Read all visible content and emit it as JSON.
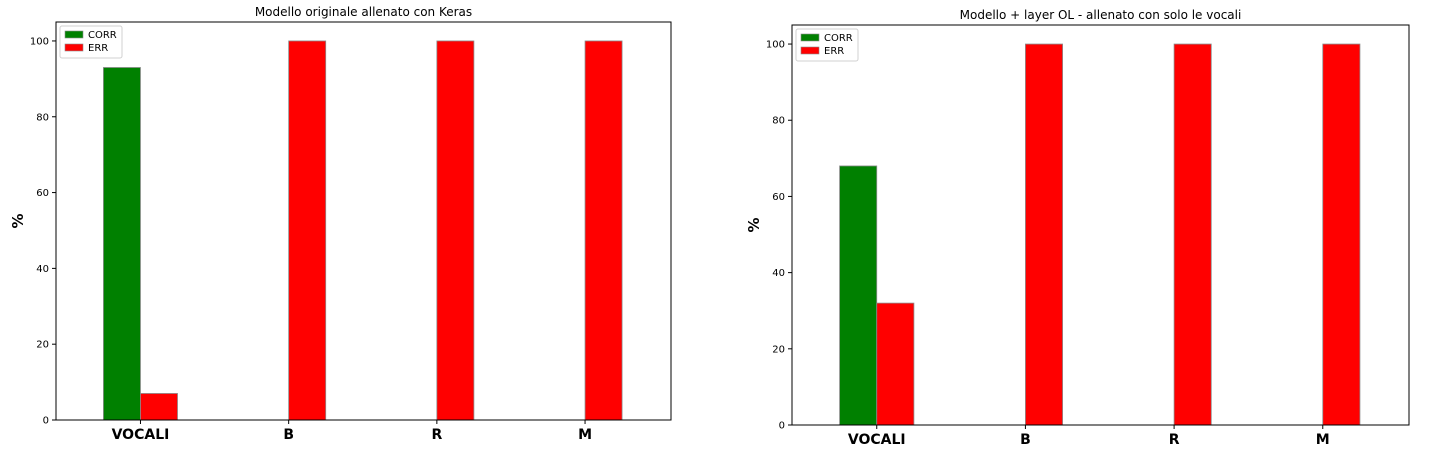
{
  "chart_data": [
    {
      "type": "bar",
      "title": "Modello originale allenato con Keras",
      "xlabel": "",
      "ylabel": "%",
      "categories": [
        "VOCALI",
        "B",
        "R",
        "M"
      ],
      "series": [
        {
          "name": "CORR",
          "color": "#008000",
          "values": [
            93,
            0,
            0,
            0
          ]
        },
        {
          "name": "ERR",
          "color": "#ff0000",
          "values": [
            7,
            100,
            100,
            100
          ]
        }
      ],
      "ylim": [
        0,
        105
      ],
      "yticks": [
        0,
        20,
        40,
        60,
        80,
        100
      ],
      "legend": "top-left",
      "grid": false
    },
    {
      "type": "bar",
      "title": "Modello + layer OL  - allenato con solo le vocali",
      "xlabel": "",
      "ylabel": "%",
      "categories": [
        "VOCALI",
        "B",
        "R",
        "M"
      ],
      "series": [
        {
          "name": "CORR",
          "color": "#008000",
          "values": [
            68,
            0,
            0,
            0
          ]
        },
        {
          "name": "ERR",
          "color": "#ff0000",
          "values": [
            32,
            100,
            100,
            100
          ]
        }
      ],
      "ylim": [
        0,
        105
      ],
      "yticks": [
        0,
        20,
        40,
        60,
        80,
        100
      ],
      "legend": "top-left",
      "grid": false
    }
  ]
}
